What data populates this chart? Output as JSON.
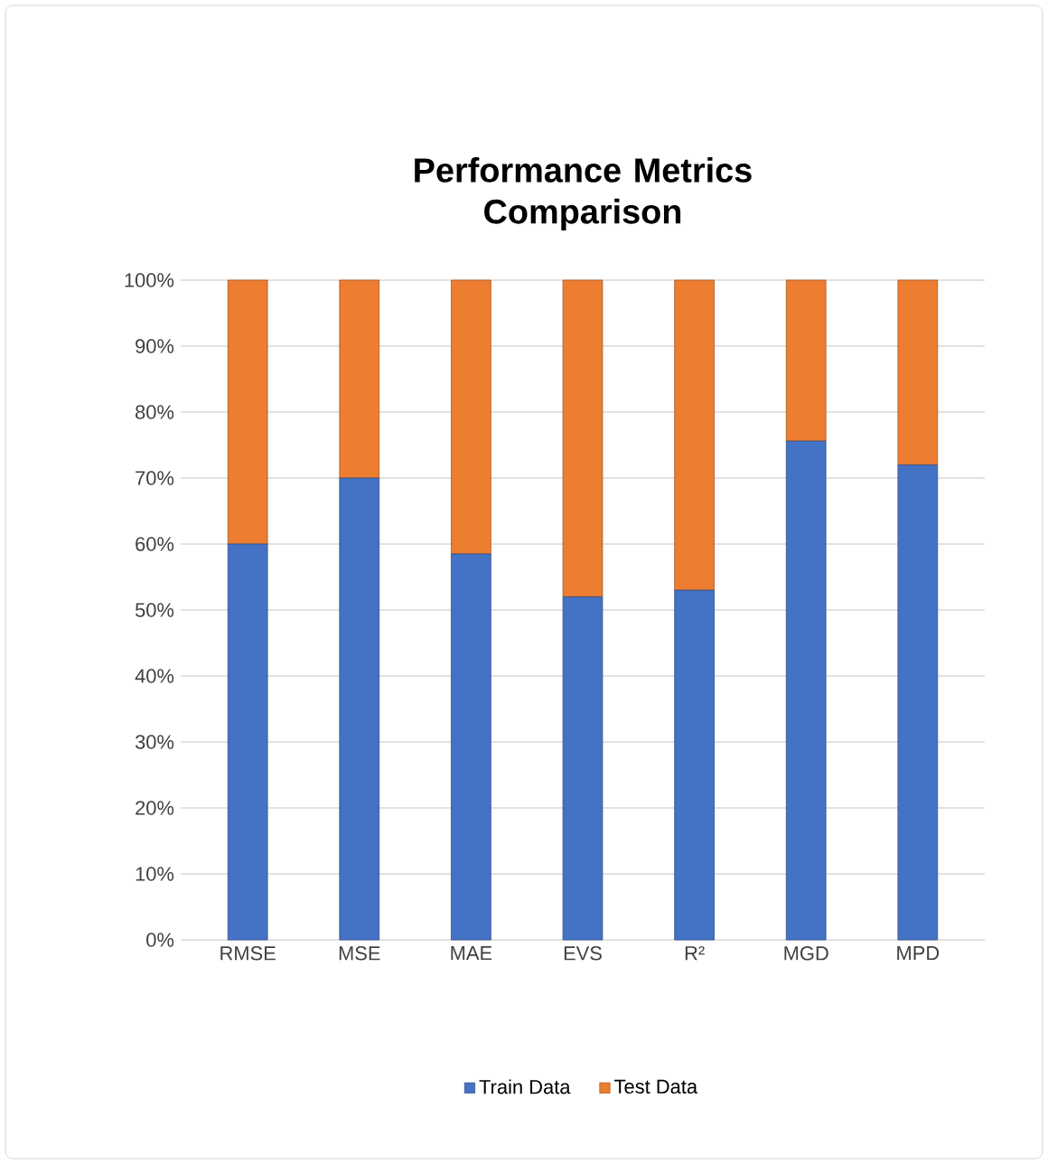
{
  "chart_data": {
    "type": "bar",
    "title": "Performance Metrics Comparison",
    "stacked": true,
    "grid": "y",
    "legend": "bottom",
    "categories": [
      "RMSE",
      "MSE",
      "MAE",
      "EVS",
      "R²",
      "MGD",
      "MPD"
    ],
    "series": [
      {
        "name": "Train Data",
        "color": "#4472c4",
        "values": [
          60,
          70,
          58.5,
          52,
          53,
          75.6,
          72
        ]
      },
      {
        "name": "Test Data",
        "color": "#ed7d31",
        "values": [
          40,
          30,
          41.5,
          48,
          47,
          24.4,
          28
        ]
      }
    ],
    "ylim": [
      0,
      100
    ],
    "yticks": [
      {
        "value": 0,
        "label": "0%"
      },
      {
        "value": 10,
        "label": "10%"
      },
      {
        "value": 20,
        "label": "20%"
      },
      {
        "value": 30,
        "label": "30%"
      },
      {
        "value": 40,
        "label": "40%"
      },
      {
        "value": 50,
        "label": "50%"
      },
      {
        "value": 60,
        "label": "60%"
      },
      {
        "value": 70,
        "label": "70%"
      },
      {
        "value": 80,
        "label": "80%"
      },
      {
        "value": 90,
        "label": "90%"
      },
      {
        "value": 100,
        "label": "100%"
      }
    ]
  }
}
